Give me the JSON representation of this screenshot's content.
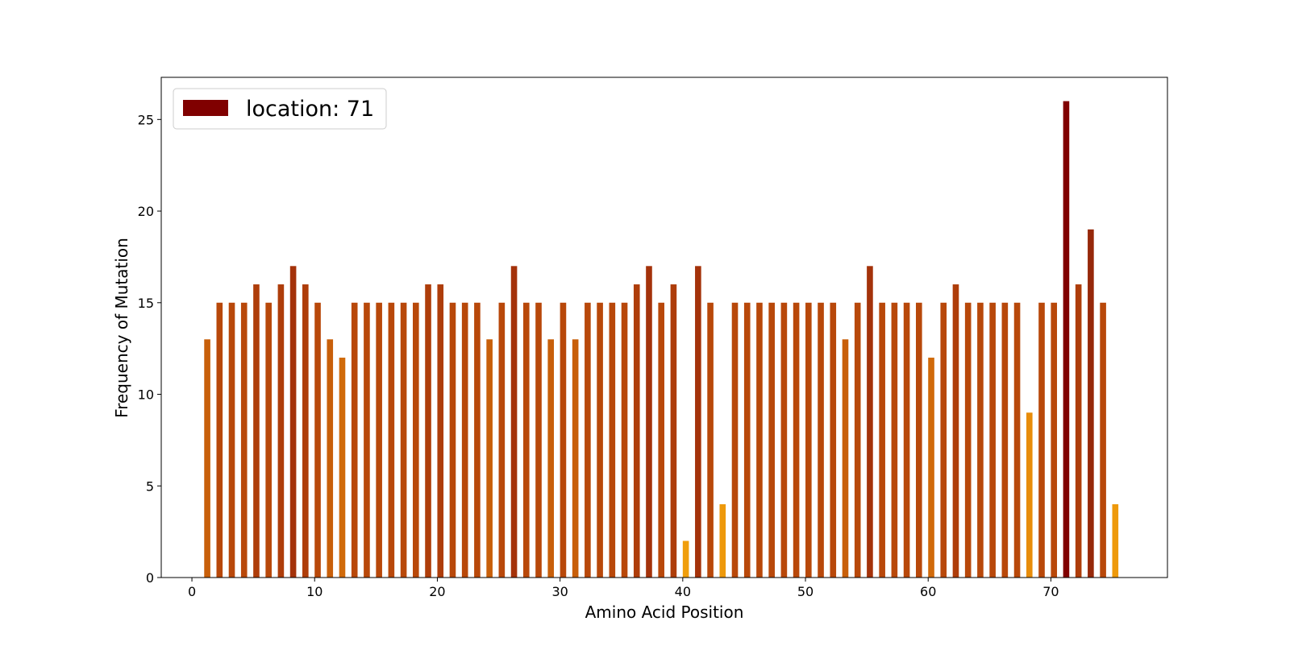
{
  "chart_data": {
    "type": "bar",
    "title": "",
    "xlabel": "Amino Acid Position",
    "ylabel": "Frequency of Mutation",
    "xlim": [
      -2.5,
      79.5
    ],
    "ylim": [
      0,
      27.3
    ],
    "xticks": [
      0,
      10,
      20,
      30,
      40,
      50,
      60,
      70
    ],
    "yticks": [
      0,
      5,
      10,
      15,
      20,
      25
    ],
    "grid": false,
    "legend": {
      "label": "location: 71",
      "color": "#800000",
      "placement": "top-left"
    },
    "highlight_position": 71,
    "bar_width": 0.5,
    "x": [
      1,
      2,
      3,
      4,
      5,
      6,
      7,
      8,
      9,
      10,
      11,
      12,
      13,
      14,
      15,
      16,
      17,
      18,
      19,
      20,
      21,
      22,
      23,
      24,
      25,
      26,
      27,
      28,
      29,
      30,
      31,
      32,
      33,
      34,
      35,
      36,
      37,
      38,
      39,
      40,
      41,
      42,
      43,
      44,
      45,
      46,
      47,
      48,
      49,
      50,
      51,
      52,
      53,
      54,
      55,
      56,
      57,
      58,
      59,
      60,
      61,
      62,
      63,
      64,
      65,
      66,
      67,
      68,
      69,
      70,
      71,
      72,
      73,
      74,
      75
    ],
    "values": [
      13,
      15,
      15,
      15,
      16,
      15,
      16,
      17,
      16,
      15,
      13,
      12,
      15,
      15,
      15,
      15,
      15,
      15,
      16,
      16,
      15,
      15,
      15,
      13,
      15,
      17,
      15,
      15,
      13,
      15,
      13,
      15,
      15,
      15,
      15,
      16,
      17,
      15,
      16,
      2,
      17,
      15,
      4,
      15,
      15,
      15,
      15,
      15,
      15,
      15,
      15,
      15,
      13,
      15,
      17,
      15,
      15,
      15,
      15,
      12,
      15,
      16,
      15,
      15,
      15,
      15,
      15,
      9,
      15,
      15,
      26,
      16,
      19,
      15,
      4
    ]
  }
}
